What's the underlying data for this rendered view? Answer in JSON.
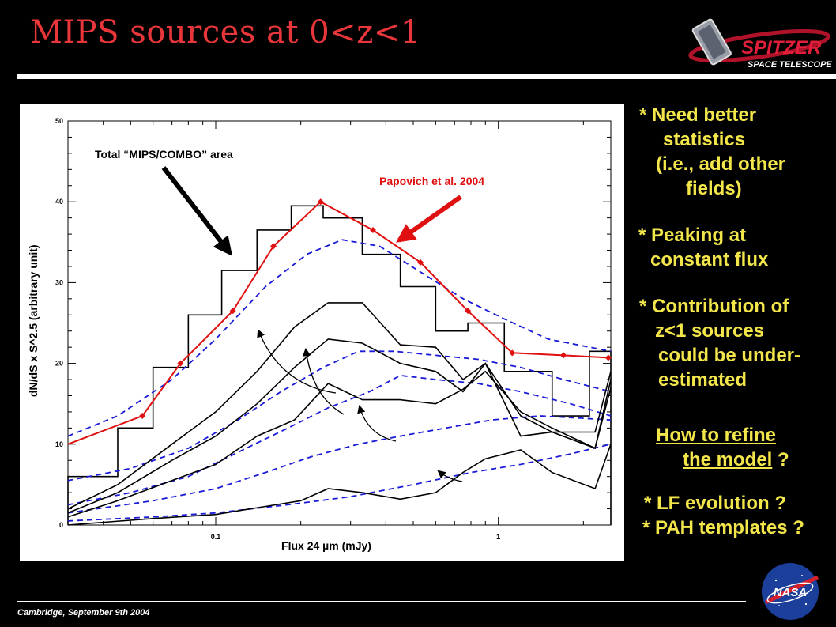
{
  "slide": {
    "title": "MIPS sources at 0<z<1",
    "footer": "Cambridge, September 9th 2004",
    "logo_text_top": "SPITZER",
    "logo_text_bottom": "SPACE TELESCOPE",
    "nasa_text": "NASA"
  },
  "bullets": {
    "b1": [
      "* Need better",
      "statistics",
      "(i.e., add other",
      "fields)"
    ],
    "b2": [
      "* Peaking at",
      "constant flux"
    ],
    "b3": [
      "* Contribution of",
      "z<1 sources",
      "could be under-",
      "estimated"
    ],
    "q": [
      "How to refine",
      "the model",
      " ?"
    ],
    "b4": [
      "* LF evolution ?",
      "* PAH templates ?"
    ]
  },
  "colors": {
    "title": "#e8363b",
    "bullets": "#f2e64b",
    "model": "#1a1ad8",
    "papovich": "#e01010"
  },
  "chart_data": {
    "type": "line",
    "xlabel": "Flux 24 µm (mJy)",
    "ylabel": "dN/dS x S^2.5 (arbitrary unit)",
    "xscale": "log",
    "xlim": [
      0.03,
      2.5
    ],
    "ylim": [
      0,
      50
    ],
    "x_ticks": [
      {
        "v": 0.1,
        "label": "0.1"
      },
      {
        "v": 1,
        "label": "1"
      }
    ],
    "y_ticks": [
      0,
      10,
      20,
      30,
      40,
      50
    ],
    "annotations": [
      {
        "text": "Total “MIPS/COMBO” area"
      },
      {
        "text": "Papovich et al. 2004"
      }
    ],
    "histogram": {
      "edges": [
        0.03,
        0.045,
        0.06,
        0.08,
        0.105,
        0.14,
        0.185,
        0.24,
        0.33,
        0.45,
        0.6,
        0.78,
        1.05,
        1.55,
        2.1,
        2.5
      ],
      "values": [
        6,
        12,
        19.5,
        26,
        31.5,
        36.5,
        39.5,
        38,
        33.5,
        29.5,
        24,
        25,
        19,
        13.5,
        21.5
      ]
    },
    "series": [
      {
        "name": "Papovich et al. 2004",
        "style": "red-diamonds",
        "x": [
          0.03,
          0.055,
          0.075,
          0.115,
          0.16,
          0.235,
          0.36,
          0.53,
          0.78,
          1.12,
          1.7,
          2.45
        ],
        "y": [
          10,
          13.5,
          20,
          26.5,
          34.5,
          40,
          36.5,
          32.5,
          26.5,
          21.3,
          21,
          20.7
        ]
      },
      {
        "style": "blue-dashed",
        "x": [
          0.03,
          0.045,
          0.07,
          0.1,
          0.15,
          0.21,
          0.28,
          0.38,
          0.52,
          0.75,
          1.05,
          1.5,
          2.5
        ],
        "y": [
          11,
          13.5,
          18,
          23,
          29.5,
          33.5,
          35.3,
          34.5,
          31.5,
          28,
          25.5,
          23,
          21.5
        ]
      },
      {
        "style": "blue-dashed",
        "x": [
          0.03,
          0.05,
          0.08,
          0.12,
          0.17,
          0.24,
          0.32,
          0.43,
          0.6,
          0.85,
          1.2,
          1.7,
          2.5
        ],
        "y": [
          5.5,
          7,
          9.5,
          13,
          16.5,
          19.5,
          21.5,
          21.5,
          21,
          20.5,
          19.5,
          18,
          16.5
        ]
      },
      {
        "style": "blue-dashed",
        "x": [
          0.03,
          0.05,
          0.08,
          0.12,
          0.18,
          0.25,
          0.35,
          0.45,
          0.6,
          0.85,
          1.2,
          1.8,
          2.5
        ],
        "y": [
          2.5,
          4,
          6,
          9,
          12,
          14.5,
          16.5,
          18.5,
          18,
          17.5,
          16.5,
          15,
          13.5
        ]
      },
      {
        "style": "blue-dashed",
        "x": [
          0.03,
          0.06,
          0.1,
          0.15,
          0.22,
          0.32,
          0.45,
          0.65,
          0.95,
          1.4,
          2.5
        ],
        "y": [
          1.5,
          3,
          4.5,
          6.5,
          8.5,
          10,
          11,
          12,
          13,
          13.5,
          13
        ]
      },
      {
        "style": "blue-dashed",
        "x": [
          0.03,
          0.06,
          0.1,
          0.18,
          0.3,
          0.5,
          0.8,
          1.2,
          1.8,
          2.5
        ],
        "y": [
          0.5,
          1,
          1.5,
          2.5,
          3.5,
          5,
          6.5,
          7.5,
          8.8,
          10
        ]
      },
      {
        "style": "black",
        "x": [
          0.03,
          0.045,
          0.07,
          0.1,
          0.14,
          0.19,
          0.25,
          0.33,
          0.45,
          0.6,
          0.75,
          0.9,
          1.2,
          1.55,
          2.2,
          2.5
        ],
        "y": [
          2,
          5,
          10,
          14,
          19,
          24.5,
          27.5,
          27.5,
          22.3,
          22,
          18,
          20,
          13.5,
          11.5,
          11.5,
          19
        ]
      },
      {
        "style": "black",
        "x": [
          0.03,
          0.045,
          0.07,
          0.1,
          0.14,
          0.19,
          0.25,
          0.33,
          0.45,
          0.6,
          0.75,
          0.9,
          1.2,
          1.55,
          2.2,
          2.5
        ],
        "y": [
          1.5,
          4,
          8,
          11,
          15,
          19.5,
          23,
          22.5,
          20,
          19,
          16.5,
          20,
          11,
          11.5,
          9.5,
          18
        ]
      },
      {
        "style": "black",
        "x": [
          0.03,
          0.045,
          0.07,
          0.1,
          0.14,
          0.19,
          0.25,
          0.33,
          0.45,
          0.6,
          0.75,
          0.9,
          1.2,
          1.55,
          2.2,
          2.5
        ],
        "y": [
          1,
          3,
          5.5,
          7.5,
          11,
          13,
          17.5,
          15.5,
          15.5,
          15,
          16.8,
          19,
          14,
          12,
          9.5,
          17
        ]
      },
      {
        "style": "black",
        "x": [
          0.03,
          0.06,
          0.1,
          0.15,
          0.2,
          0.25,
          0.33,
          0.45,
          0.6,
          0.75,
          0.9,
          1.2,
          1.55,
          2.2,
          2.5
        ],
        "y": [
          0,
          0.8,
          1.3,
          2.3,
          3,
          4.5,
          4,
          3.2,
          4,
          6.5,
          8.2,
          9.3,
          6.5,
          4.5,
          10
        ]
      }
    ]
  }
}
